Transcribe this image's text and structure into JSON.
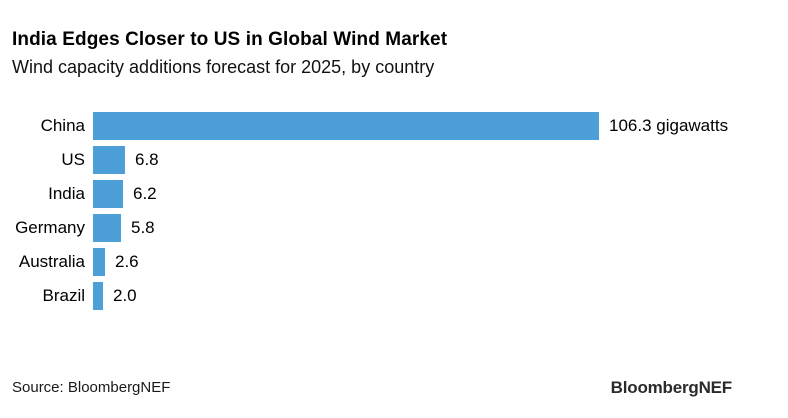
{
  "header": {
    "title": "India Edges Closer to US in Global Wind Market",
    "subtitle": "Wind capacity additions forecast for 2025, by country"
  },
  "chart_data": {
    "type": "bar",
    "orientation": "horizontal",
    "title": "India Edges Closer to US in Global Wind Market",
    "subtitle": "Wind capacity additions forecast for 2025, by country",
    "categories": [
      "China",
      "US",
      "India",
      "Germany",
      "Australia",
      "Brazil"
    ],
    "values": [
      106.3,
      6.8,
      6.2,
      5.8,
      2.6,
      2.0
    ],
    "value_labels": [
      "106.3 gigawatts",
      "6.8",
      "6.2",
      "5.8",
      "2.6",
      "2.0"
    ],
    "unit": "gigawatts",
    "xlim": [
      0,
      106.3
    ],
    "bar_color": "#4D9FD7",
    "grid": false,
    "legend": "none",
    "xlabel": "",
    "ylabel": ""
  },
  "footer": {
    "source": "Source: BloombergNEF",
    "logo": "BloombergNEF"
  }
}
